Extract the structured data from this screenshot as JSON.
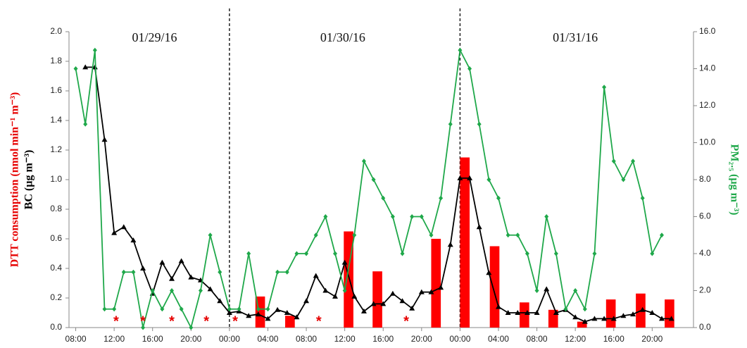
{
  "chart_data": {
    "type": "combo",
    "ylabel": "DTT consumption (nmol min⁻¹ m⁻³)",
    "ylabel2": "BC (µg m⁻³)",
    "y2label": "PM₂.₅ (µg m⁻³)",
    "xlim": [
      7.3,
      72.3
    ],
    "xticks": [
      {
        "value": 8,
        "label": "08:00"
      },
      {
        "value": 12,
        "label": "12:00"
      },
      {
        "value": 16,
        "label": "16:00"
      },
      {
        "value": 20,
        "label": "20:00"
      },
      {
        "value": 24,
        "label": "00:00"
      },
      {
        "value": 28,
        "label": "04:00"
      },
      {
        "value": 32,
        "label": "08:00"
      },
      {
        "value": 36,
        "label": "12:00"
      },
      {
        "value": 40,
        "label": "16:00"
      },
      {
        "value": 44,
        "label": "20:00"
      },
      {
        "value": 48,
        "label": "00:00"
      },
      {
        "value": 52,
        "label": "04:00"
      },
      {
        "value": 56,
        "label": "08:00"
      },
      {
        "value": 60,
        "label": "12:00"
      },
      {
        "value": 64,
        "label": "16:00"
      },
      {
        "value": 68,
        "label": "20:00"
      }
    ],
    "ylim": [
      0,
      2
    ],
    "yticks": [
      {
        "value": 0,
        "label": "0.0"
      },
      {
        "value": 0.2,
        "label": "0.2"
      },
      {
        "value": 0.4,
        "label": "0.4"
      },
      {
        "value": 0.6,
        "label": "0.6"
      },
      {
        "value": 0.8,
        "label": "0.8"
      },
      {
        "value": 1,
        "label": "1.0"
      },
      {
        "value": 1.2,
        "label": "1.2"
      },
      {
        "value": 1.4,
        "label": "1.4"
      },
      {
        "value": 1.6,
        "label": "1.6"
      },
      {
        "value": 1.8,
        "label": "1.8"
      },
      {
        "value": 2,
        "label": "2.0"
      }
    ],
    "y2lim": [
      0,
      16
    ],
    "y2ticks": [
      {
        "value": 0,
        "label": "0.0"
      },
      {
        "value": 2,
        "label": "2.0"
      },
      {
        "value": 4,
        "label": "4.0"
      },
      {
        "value": 6,
        "label": "6.0"
      },
      {
        "value": 8,
        "label": "8.0"
      },
      {
        "value": 10,
        "label": "10.0"
      },
      {
        "value": 12,
        "label": "12.0"
      },
      {
        "value": 14,
        "label": "14.0"
      },
      {
        "value": 16,
        "label": "16.0"
      }
    ],
    "vlines": [
      24,
      48
    ],
    "day_labels": [
      {
        "text": "01/29/16",
        "x": 16.2
      },
      {
        "text": "01/30/16",
        "x": 35.8
      },
      {
        "text": "01/31/16",
        "x": 60
      }
    ],
    "annotations": [
      {
        "text": "*",
        "x": 12.2
      },
      {
        "text": "*",
        "x": 15
      },
      {
        "text": "*",
        "x": 18
      },
      {
        "text": "*",
        "x": 21.6
      },
      {
        "text": "*",
        "x": 24.6
      },
      {
        "text": "*",
        "x": 33.3
      },
      {
        "text": "*",
        "x": 42.4
      }
    ],
    "series": [
      {
        "type": "bar",
        "color": "#ff0000",
        "x": [
          27.2,
          30.3,
          36.4,
          39.4,
          45.5,
          48.5,
          51.6,
          54.7,
          57.7,
          60.7,
          63.7,
          66.8,
          69.8
        ],
        "values": [
          0.21,
          0.08,
          0.65,
          0.38,
          0.6,
          1.15,
          0.55,
          0.17,
          0.12,
          0.04,
          0.19,
          0.23,
          0.19
        ]
      },
      {
        "type": "line",
        "color": "#000000",
        "marker": "triangle",
        "x": [
          9,
          10,
          11,
          12,
          13,
          14,
          15,
          16,
          17,
          18,
          19,
          20,
          21,
          22,
          23,
          24,
          25,
          26,
          27,
          28,
          29,
          30,
          31,
          32,
          33,
          34,
          35,
          36,
          37,
          38,
          39,
          40,
          41,
          42,
          43,
          44,
          45,
          46,
          47,
          48,
          49,
          50,
          51,
          52,
          53,
          54,
          55,
          56,
          57,
          58,
          59,
          60,
          61,
          62,
          63,
          64,
          65,
          66,
          67,
          68,
          69,
          70
        ],
        "values": [
          1.76,
          1.76,
          1.27,
          0.64,
          0.68,
          0.59,
          0.4,
          0.23,
          0.44,
          0.33,
          0.45,
          0.34,
          0.32,
          0.26,
          0.18,
          0.1,
          0.11,
          0.08,
          0.09,
          0.06,
          0.12,
          0.1,
          0.07,
          0.18,
          0.35,
          0.25,
          0.21,
          0.44,
          0.21,
          0.11,
          0.16,
          0.16,
          0.23,
          0.18,
          0.13,
          0.24,
          0.24,
          0.27,
          0.56,
          1.01,
          1.01,
          0.68,
          0.37,
          0.14,
          0.1,
          0.1,
          0.1,
          0.1,
          0.26,
          0.1,
          0.12,
          0.07,
          0.04,
          0.06,
          0.06,
          0.06,
          0.08,
          0.09,
          0.12,
          0.1,
          0.06,
          0.06
        ]
      },
      {
        "type": "line",
        "color": "#1fa84a",
        "marker": "diamond",
        "axis": "y2",
        "x": [
          8,
          9,
          10,
          11,
          12,
          13,
          14,
          15,
          16,
          17,
          18,
          19,
          20,
          21,
          22,
          23,
          24,
          25,
          26,
          27,
          28,
          29,
          30,
          31,
          32,
          33,
          34,
          35,
          36,
          37,
          38,
          39,
          40,
          41,
          42,
          43,
          44,
          45,
          46,
          47,
          48,
          49,
          50,
          51,
          52,
          53,
          54,
          55,
          56,
          57,
          58,
          59,
          60,
          61,
          62,
          63,
          64,
          65,
          66,
          67,
          68,
          69
        ],
        "values": [
          14,
          11,
          15,
          1,
          1,
          3,
          3,
          0,
          2,
          1,
          2,
          1,
          0,
          2,
          5,
          3,
          1,
          1,
          4,
          1,
          1,
          3,
          3,
          4,
          4,
          5,
          6,
          4,
          2,
          5,
          9,
          8,
          7,
          6,
          4,
          6,
          6,
          5,
          7,
          11,
          15,
          14,
          11,
          8,
          7,
          5,
          5,
          4,
          2,
          6,
          4,
          1,
          2,
          1,
          4,
          13,
          9,
          8,
          9,
          7,
          4,
          5
        ]
      }
    ]
  }
}
